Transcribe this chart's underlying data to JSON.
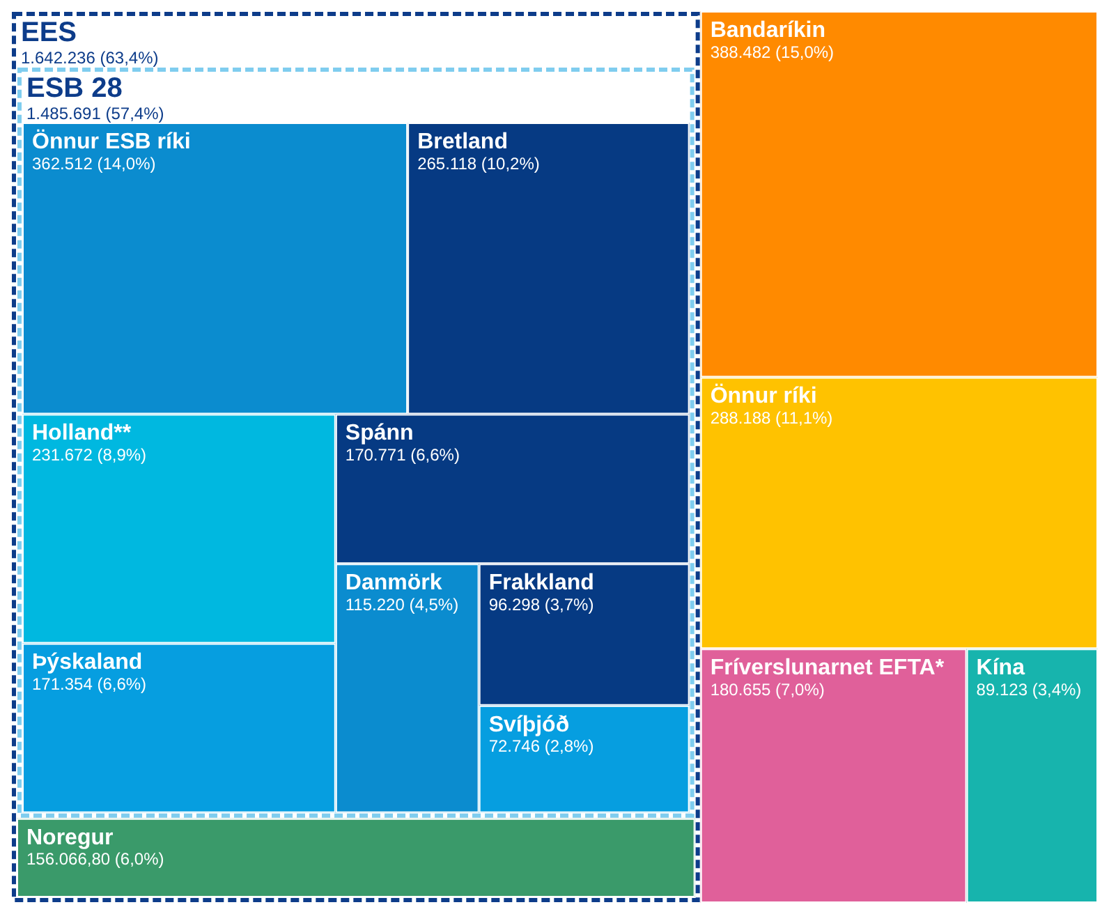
{
  "chart_data": {
    "type": "other",
    "categories": [
      "EES",
      "ESB 28",
      "Önnur ESB ríki",
      "Bretland",
      "Holland**",
      "Þýskaland",
      "Spánn",
      "Danmörk",
      "Frakkland",
      "Svíþjóð",
      "Noregur",
      "Bandaríkin",
      "Önnur ríki",
      "Fríverslunarnet EFTA*",
      "Kína"
    ],
    "values": [
      1642236,
      1485691,
      362512,
      265118,
      231672,
      171354,
      170771,
      115220,
      96298,
      72746,
      156066.8,
      388482,
      288188,
      180655,
      89123
    ],
    "value_labels": [
      "1.642.236 (63,4%)",
      "1.485.691 (57,4%)",
      "362.512 (14,0%)",
      "265.118 (10,2%)",
      "231.672 (8,9%)",
      "171.354 (6,6%)",
      "170.771 (6,6%)",
      "115.220 (4,5%)",
      "96.298 (3,7%)",
      "72.746 (2,8%)",
      "156.066,80 (6,0%)",
      "388.482 (15,0%)",
      "288.188 (11,1%)",
      "180.655 (7,0%)",
      "89.123 (3,4%)"
    ],
    "colors": [
      null,
      null,
      "#0b8ccf",
      "#063a83",
      "#00b8e0",
      "#069ee0",
      "#063a83",
      "#0b8ccf",
      "#063a83",
      "#069ee0",
      "#3a9a6a",
      "#ff8a00",
      "#ffc200",
      "#e0609a",
      "#17b4ad"
    ]
  }
}
